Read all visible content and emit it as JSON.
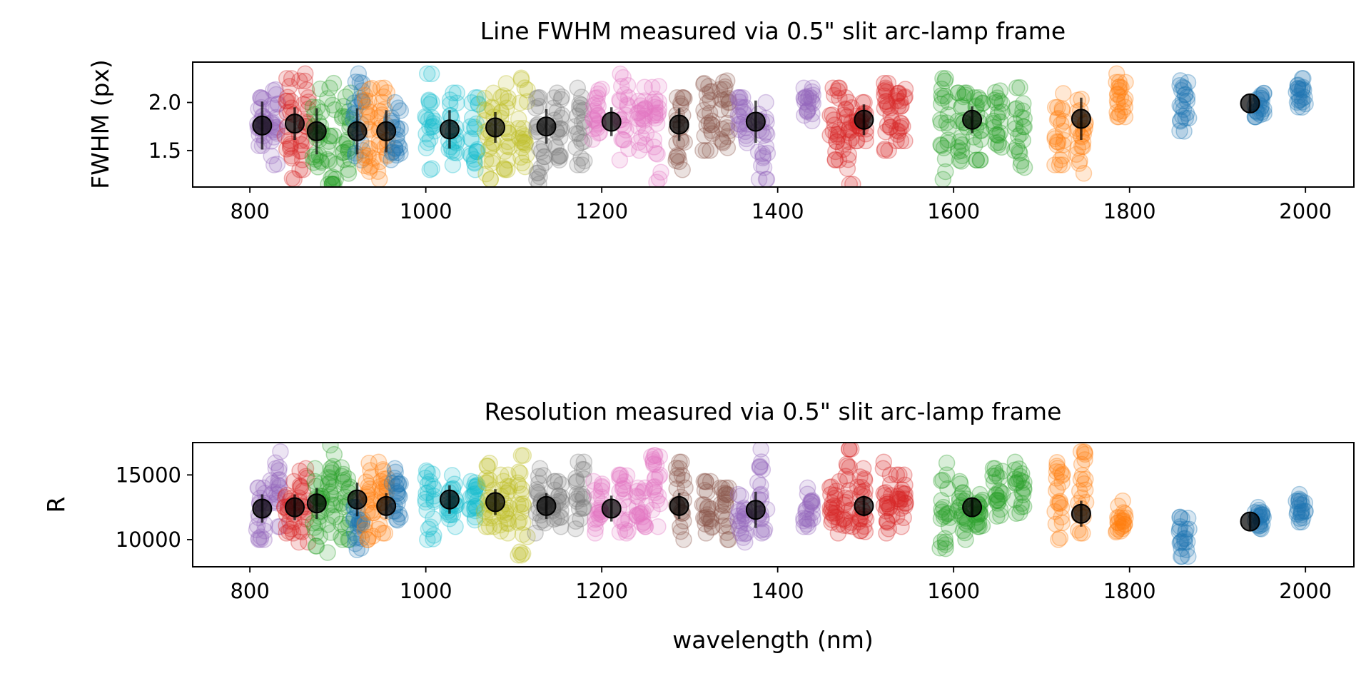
{
  "chart_data": [
    {
      "type": "scatter",
      "title": "Line FWHM measured via 0.5\" slit arc-lamp frame",
      "xlabel": "",
      "ylabel": "FWHM (px)",
      "xlim": [
        735,
        2055
      ],
      "ylim": [
        1.12,
        2.42
      ],
      "xticks": [
        800,
        1000,
        1200,
        1400,
        1600,
        1800,
        2000
      ],
      "yticks": [
        1.5,
        2.0
      ],
      "ytick_labels": [
        "1.5",
        "2.0"
      ],
      "grid": false,
      "legend": "none",
      "clusters": [
        {
          "x": 813,
          "color": "#9467bd",
          "ymin": 1.55,
          "ymax": 2.05
        },
        {
          "x": 829,
          "color": "#9467bd",
          "ymin": 1.35,
          "ymax": 2.15
        },
        {
          "x": 845,
          "color": "#d62728",
          "ymin": 1.2,
          "ymax": 2.25
        },
        {
          "x": 861,
          "color": "#d62728",
          "ymin": 1.3,
          "ymax": 2.3
        },
        {
          "x": 877,
          "color": "#2ca02c",
          "ymin": 1.2,
          "ymax": 2.2
        },
        {
          "x": 893,
          "color": "#2ca02c",
          "ymin": 1.15,
          "ymax": 2.2
        },
        {
          "x": 909,
          "color": "#2ca02c",
          "ymin": 1.25,
          "ymax": 2.1
        },
        {
          "x": 923,
          "color": "#1f77b4",
          "ymin": 1.4,
          "ymax": 2.3
        },
        {
          "x": 936,
          "color": "#ff7f0e",
          "ymin": 1.2,
          "ymax": 2.15
        },
        {
          "x": 951,
          "color": "#ff7f0e",
          "ymin": 1.2,
          "ymax": 2.15
        },
        {
          "x": 966,
          "color": "#1f77b4",
          "ymin": 1.35,
          "ymax": 2.0
        },
        {
          "x": 1005,
          "color": "#17becf",
          "ymin": 1.3,
          "ymax": 2.3
        },
        {
          "x": 1030,
          "color": "#17becf",
          "ymin": 1.35,
          "ymax": 2.1
        },
        {
          "x": 1055,
          "color": "#17becf",
          "ymin": 1.3,
          "ymax": 2.05
        },
        {
          "x": 1072,
          "color": "#bcbd22",
          "ymin": 1.2,
          "ymax": 2.1
        },
        {
          "x": 1090,
          "color": "#bcbd22",
          "ymin": 1.3,
          "ymax": 2.2
        },
        {
          "x": 1110,
          "color": "#bcbd22",
          "ymin": 1.2,
          "ymax": 2.42
        },
        {
          "x": 1130,
          "color": "#7f7f7f",
          "ymin": 1.15,
          "ymax": 2.05
        },
        {
          "x": 1150,
          "color": "#7f7f7f",
          "ymin": 1.4,
          "ymax": 2.1
        },
        {
          "x": 1175,
          "color": "#7f7f7f",
          "ymin": 1.35,
          "ymax": 2.15
        },
        {
          "x": 1195,
          "color": "#e377c2",
          "ymin": 1.5,
          "ymax": 2.15
        },
        {
          "x": 1225,
          "color": "#e377c2",
          "ymin": 1.4,
          "ymax": 2.3
        },
        {
          "x": 1245,
          "color": "#e377c2",
          "ymin": 1.5,
          "ymax": 2.2
        },
        {
          "x": 1262,
          "color": "#e377c2",
          "ymin": 1.15,
          "ymax": 2.25
        },
        {
          "x": 1290,
          "color": "#8c564b",
          "ymin": 1.3,
          "ymax": 2.05
        },
        {
          "x": 1320,
          "color": "#8c564b",
          "ymin": 1.5,
          "ymax": 2.2
        },
        {
          "x": 1340,
          "color": "#8c564b",
          "ymin": 1.5,
          "ymax": 2.25
        },
        {
          "x": 1360,
          "color": "#9467bd",
          "ymin": 1.5,
          "ymax": 2.05
        },
        {
          "x": 1383,
          "color": "#9467bd",
          "ymin": 1.2,
          "ymax": 2.0
        },
        {
          "x": 1435,
          "color": "#9467bd",
          "ymin": 1.8,
          "ymax": 2.15
        },
        {
          "x": 1465,
          "color": "#d62728",
          "ymin": 1.4,
          "ymax": 2.15
        },
        {
          "x": 1480,
          "color": "#d62728",
          "ymin": 1.15,
          "ymax": 2.05
        },
        {
          "x": 1495,
          "color": "#d62728",
          "ymin": 1.6,
          "ymax": 2.0
        },
        {
          "x": 1525,
          "color": "#d62728",
          "ymin": 1.5,
          "ymax": 2.2
        },
        {
          "x": 1540,
          "color": "#d62728",
          "ymin": 1.6,
          "ymax": 2.15
        },
        {
          "x": 1590,
          "color": "#2ca02c",
          "ymin": 1.2,
          "ymax": 2.25
        },
        {
          "x": 1610,
          "color": "#2ca02c",
          "ymin": 1.3,
          "ymax": 2.1
        },
        {
          "x": 1628,
          "color": "#2ca02c",
          "ymin": 1.4,
          "ymax": 2.05
        },
        {
          "x": 1650,
          "color": "#2ca02c",
          "ymin": 1.5,
          "ymax": 2.15
        },
        {
          "x": 1675,
          "color": "#2ca02c",
          "ymin": 1.25,
          "ymax": 2.2
        },
        {
          "x": 1720,
          "color": "#ff7f0e",
          "ymin": 1.35,
          "ymax": 2.2
        },
        {
          "x": 1745,
          "color": "#ff7f0e",
          "ymin": 1.25,
          "ymax": 2.1
        },
        {
          "x": 1790,
          "color": "#ff7f0e",
          "ymin": 1.85,
          "ymax": 2.3
        },
        {
          "x": 1862,
          "color": "#1f77b4",
          "ymin": 1.7,
          "ymax": 2.3
        },
        {
          "x": 1948,
          "color": "#1f77b4",
          "ymin": 1.85,
          "ymax": 2.1
        },
        {
          "x": 1995,
          "color": "#1f77b4",
          "ymin": 1.9,
          "ymax": 2.25
        }
      ],
      "means": [
        {
          "x": 814,
          "y": 1.76,
          "err": 0.25
        },
        {
          "x": 851,
          "y": 1.78,
          "err": 0.17
        },
        {
          "x": 876,
          "y": 1.7,
          "err": 0.24
        },
        {
          "x": 922,
          "y": 1.7,
          "err": 0.24
        },
        {
          "x": 955,
          "y": 1.7,
          "err": 0.22
        },
        {
          "x": 1027,
          "y": 1.72,
          "err": 0.2
        },
        {
          "x": 1079,
          "y": 1.74,
          "err": 0.16
        },
        {
          "x": 1137,
          "y": 1.75,
          "err": 0.18
        },
        {
          "x": 1211,
          "y": 1.8,
          "err": 0.15
        },
        {
          "x": 1288,
          "y": 1.77,
          "err": 0.17
        },
        {
          "x": 1375,
          "y": 1.8,
          "err": 0.22
        },
        {
          "x": 1498,
          "y": 1.82,
          "err": 0.16
        },
        {
          "x": 1621,
          "y": 1.82,
          "err": 0.14
        },
        {
          "x": 1745,
          "y": 1.83,
          "err": 0.22
        },
        {
          "x": 1937,
          "y": 1.99,
          "err": 0.1
        }
      ]
    },
    {
      "type": "scatter",
      "title": "Resolution measured via 0.5\" slit arc-lamp frame",
      "xlabel": "wavelength (nm)",
      "ylabel": "R",
      "xlim": [
        735,
        2055
      ],
      "ylim": [
        7900,
        17500
      ],
      "xticks": [
        800,
        1000,
        1200,
        1400,
        1600,
        1800,
        2000
      ],
      "yticks": [
        10000,
        15000
      ],
      "ytick_labels": [
        "10000",
        "15000"
      ],
      "grid": false,
      "legend": "none",
      "clusters": [
        {
          "x": 813,
          "color": "#9467bd",
          "ymin": 10000,
          "ymax": 14000
        },
        {
          "x": 829,
          "color": "#9467bd",
          "ymin": 11000,
          "ymax": 16800
        },
        {
          "x": 845,
          "color": "#d62728",
          "ymin": 10500,
          "ymax": 14500
        },
        {
          "x": 861,
          "color": "#d62728",
          "ymin": 9800,
          "ymax": 15500
        },
        {
          "x": 877,
          "color": "#2ca02c",
          "ymin": 9500,
          "ymax": 15500
        },
        {
          "x": 893,
          "color": "#2ca02c",
          "ymin": 9000,
          "ymax": 17300
        },
        {
          "x": 909,
          "color": "#2ca02c",
          "ymin": 10000,
          "ymax": 16000
        },
        {
          "x": 923,
          "color": "#1f77b4",
          "ymin": 8800,
          "ymax": 12500
        },
        {
          "x": 936,
          "color": "#ff7f0e",
          "ymin": 10000,
          "ymax": 16500
        },
        {
          "x": 951,
          "color": "#ff7f0e",
          "ymin": 10500,
          "ymax": 16000
        },
        {
          "x": 966,
          "color": "#1f77b4",
          "ymin": 11500,
          "ymax": 15500
        },
        {
          "x": 1005,
          "color": "#17becf",
          "ymin": 10000,
          "ymax": 16000
        },
        {
          "x": 1030,
          "color": "#17becf",
          "ymin": 11000,
          "ymax": 15000
        },
        {
          "x": 1055,
          "color": "#17becf",
          "ymin": 11500,
          "ymax": 14500
        },
        {
          "x": 1072,
          "color": "#bcbd22",
          "ymin": 11000,
          "ymax": 16000
        },
        {
          "x": 1090,
          "color": "#bcbd22",
          "ymin": 10500,
          "ymax": 15000
        },
        {
          "x": 1110,
          "color": "#bcbd22",
          "ymin": 8800,
          "ymax": 16500
        },
        {
          "x": 1130,
          "color": "#7f7f7f",
          "ymin": 10500,
          "ymax": 15500
        },
        {
          "x": 1150,
          "color": "#7f7f7f",
          "ymin": 11000,
          "ymax": 14500
        },
        {
          "x": 1175,
          "color": "#7f7f7f",
          "ymin": 10500,
          "ymax": 16000
        },
        {
          "x": 1195,
          "color": "#e377c2",
          "ymin": 10500,
          "ymax": 14500
        },
        {
          "x": 1225,
          "color": "#e377c2",
          "ymin": 10500,
          "ymax": 15000
        },
        {
          "x": 1245,
          "color": "#e377c2",
          "ymin": 11000,
          "ymax": 14000
        },
        {
          "x": 1262,
          "color": "#e377c2",
          "ymin": 11000,
          "ymax": 16500
        },
        {
          "x": 1290,
          "color": "#8c564b",
          "ymin": 10000,
          "ymax": 16000
        },
        {
          "x": 1320,
          "color": "#8c564b",
          "ymin": 10500,
          "ymax": 14500
        },
        {
          "x": 1340,
          "color": "#8c564b",
          "ymin": 10000,
          "ymax": 14000
        },
        {
          "x": 1360,
          "color": "#9467bd",
          "ymin": 9800,
          "ymax": 13500
        },
        {
          "x": 1383,
          "color": "#9467bd",
          "ymin": 10500,
          "ymax": 17000
        },
        {
          "x": 1435,
          "color": "#9467bd",
          "ymin": 11000,
          "ymax": 14000
        },
        {
          "x": 1465,
          "color": "#d62728",
          "ymin": 10500,
          "ymax": 14500
        },
        {
          "x": 1480,
          "color": "#d62728",
          "ymin": 11000,
          "ymax": 17000
        },
        {
          "x": 1495,
          "color": "#d62728",
          "ymin": 10500,
          "ymax": 15500
        },
        {
          "x": 1525,
          "color": "#d62728",
          "ymin": 10500,
          "ymax": 16000
        },
        {
          "x": 1540,
          "color": "#d62728",
          "ymin": 11000,
          "ymax": 15000
        },
        {
          "x": 1590,
          "color": "#2ca02c",
          "ymin": 9300,
          "ymax": 16000
        },
        {
          "x": 1610,
          "color": "#2ca02c",
          "ymin": 10000,
          "ymax": 14500
        },
        {
          "x": 1628,
          "color": "#2ca02c",
          "ymin": 11000,
          "ymax": 13500
        },
        {
          "x": 1650,
          "color": "#2ca02c",
          "ymin": 11000,
          "ymax": 15500
        },
        {
          "x": 1675,
          "color": "#2ca02c",
          "ymin": 11000,
          "ymax": 16000
        },
        {
          "x": 1720,
          "color": "#ff7f0e",
          "ymin": 10000,
          "ymax": 16000
        },
        {
          "x": 1745,
          "color": "#ff7f0e",
          "ymin": 10500,
          "ymax": 16800
        },
        {
          "x": 1790,
          "color": "#ff7f0e",
          "ymin": 10500,
          "ymax": 13000
        },
        {
          "x": 1862,
          "color": "#1f77b4",
          "ymin": 8700,
          "ymax": 12200
        },
        {
          "x": 1948,
          "color": "#1f77b4",
          "ymin": 10500,
          "ymax": 12500
        },
        {
          "x": 1995,
          "color": "#1f77b4",
          "ymin": 11000,
          "ymax": 13500
        }
      ],
      "means": [
        {
          "x": 814,
          "y": 12400,
          "err": 1100
        },
        {
          "x": 851,
          "y": 12500,
          "err": 1000
        },
        {
          "x": 876,
          "y": 12800,
          "err": 1200
        },
        {
          "x": 922,
          "y": 13100,
          "err": 1300
        },
        {
          "x": 955,
          "y": 12600,
          "err": 1000
        },
        {
          "x": 1027,
          "y": 13100,
          "err": 1100
        },
        {
          "x": 1079,
          "y": 12900,
          "err": 1000
        },
        {
          "x": 1137,
          "y": 12600,
          "err": 1000
        },
        {
          "x": 1211,
          "y": 12400,
          "err": 1000
        },
        {
          "x": 1288,
          "y": 12600,
          "err": 1000
        },
        {
          "x": 1375,
          "y": 12300,
          "err": 1400
        },
        {
          "x": 1498,
          "y": 12600,
          "err": 800
        },
        {
          "x": 1621,
          "y": 12500,
          "err": 700
        },
        {
          "x": 1745,
          "y": 12000,
          "err": 1000
        },
        {
          "x": 1937,
          "y": 11400,
          "err": 700
        }
      ]
    }
  ]
}
